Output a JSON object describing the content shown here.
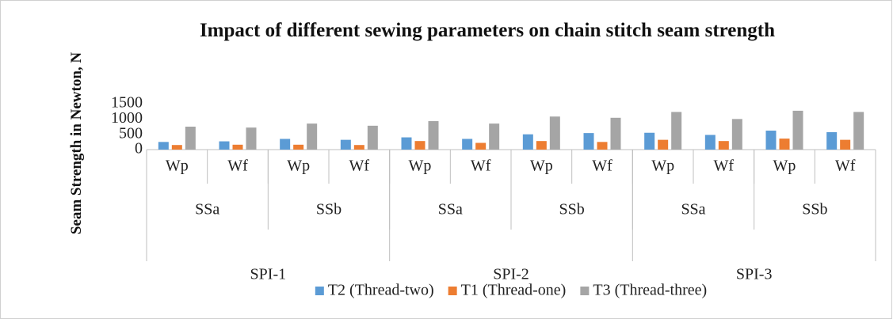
{
  "chart_data": {
    "type": "bar",
    "title": "Impact of different sewing parameters on chain stitch seam strength",
    "y_label": "Seam Strength in Newton, N",
    "categories": [
      "Wp",
      "Wf",
      "Wp",
      "Wf",
      "Wp",
      "Wf",
      "Wp",
      "Wf",
      "Wp",
      "Wf",
      "Wp",
      "Wf"
    ],
    "groups": [
      "SSa",
      "SSb",
      "SSa",
      "SSb",
      "SSa",
      "SSb"
    ],
    "supergroups": [
      "SPI-1",
      "SPI-2",
      "SPI-3"
    ],
    "series": [
      {
        "name": "T2 (Thread-two)",
        "color": "#5b9bd5",
        "values": [
          250,
          270,
          350,
          320,
          400,
          350,
          500,
          540,
          550,
          480,
          620,
          570
        ]
      },
      {
        "name": "T1 (Thread-one)",
        "color": "#ed7d31",
        "values": [
          150,
          160,
          160,
          150,
          280,
          220,
          280,
          250,
          320,
          280,
          360,
          320
        ]
      },
      {
        "name": "T3 (Thread-three)",
        "color": "#a5a5a5",
        "values": [
          750,
          720,
          850,
          780,
          930,
          850,
          1080,
          1040,
          1230,
          1000,
          1270,
          1230
        ]
      }
    ],
    "ylim": [
      0,
      1500
    ],
    "yticks": [
      0,
      500,
      1000,
      1500
    ],
    "grid": false,
    "legend": "bottom"
  }
}
